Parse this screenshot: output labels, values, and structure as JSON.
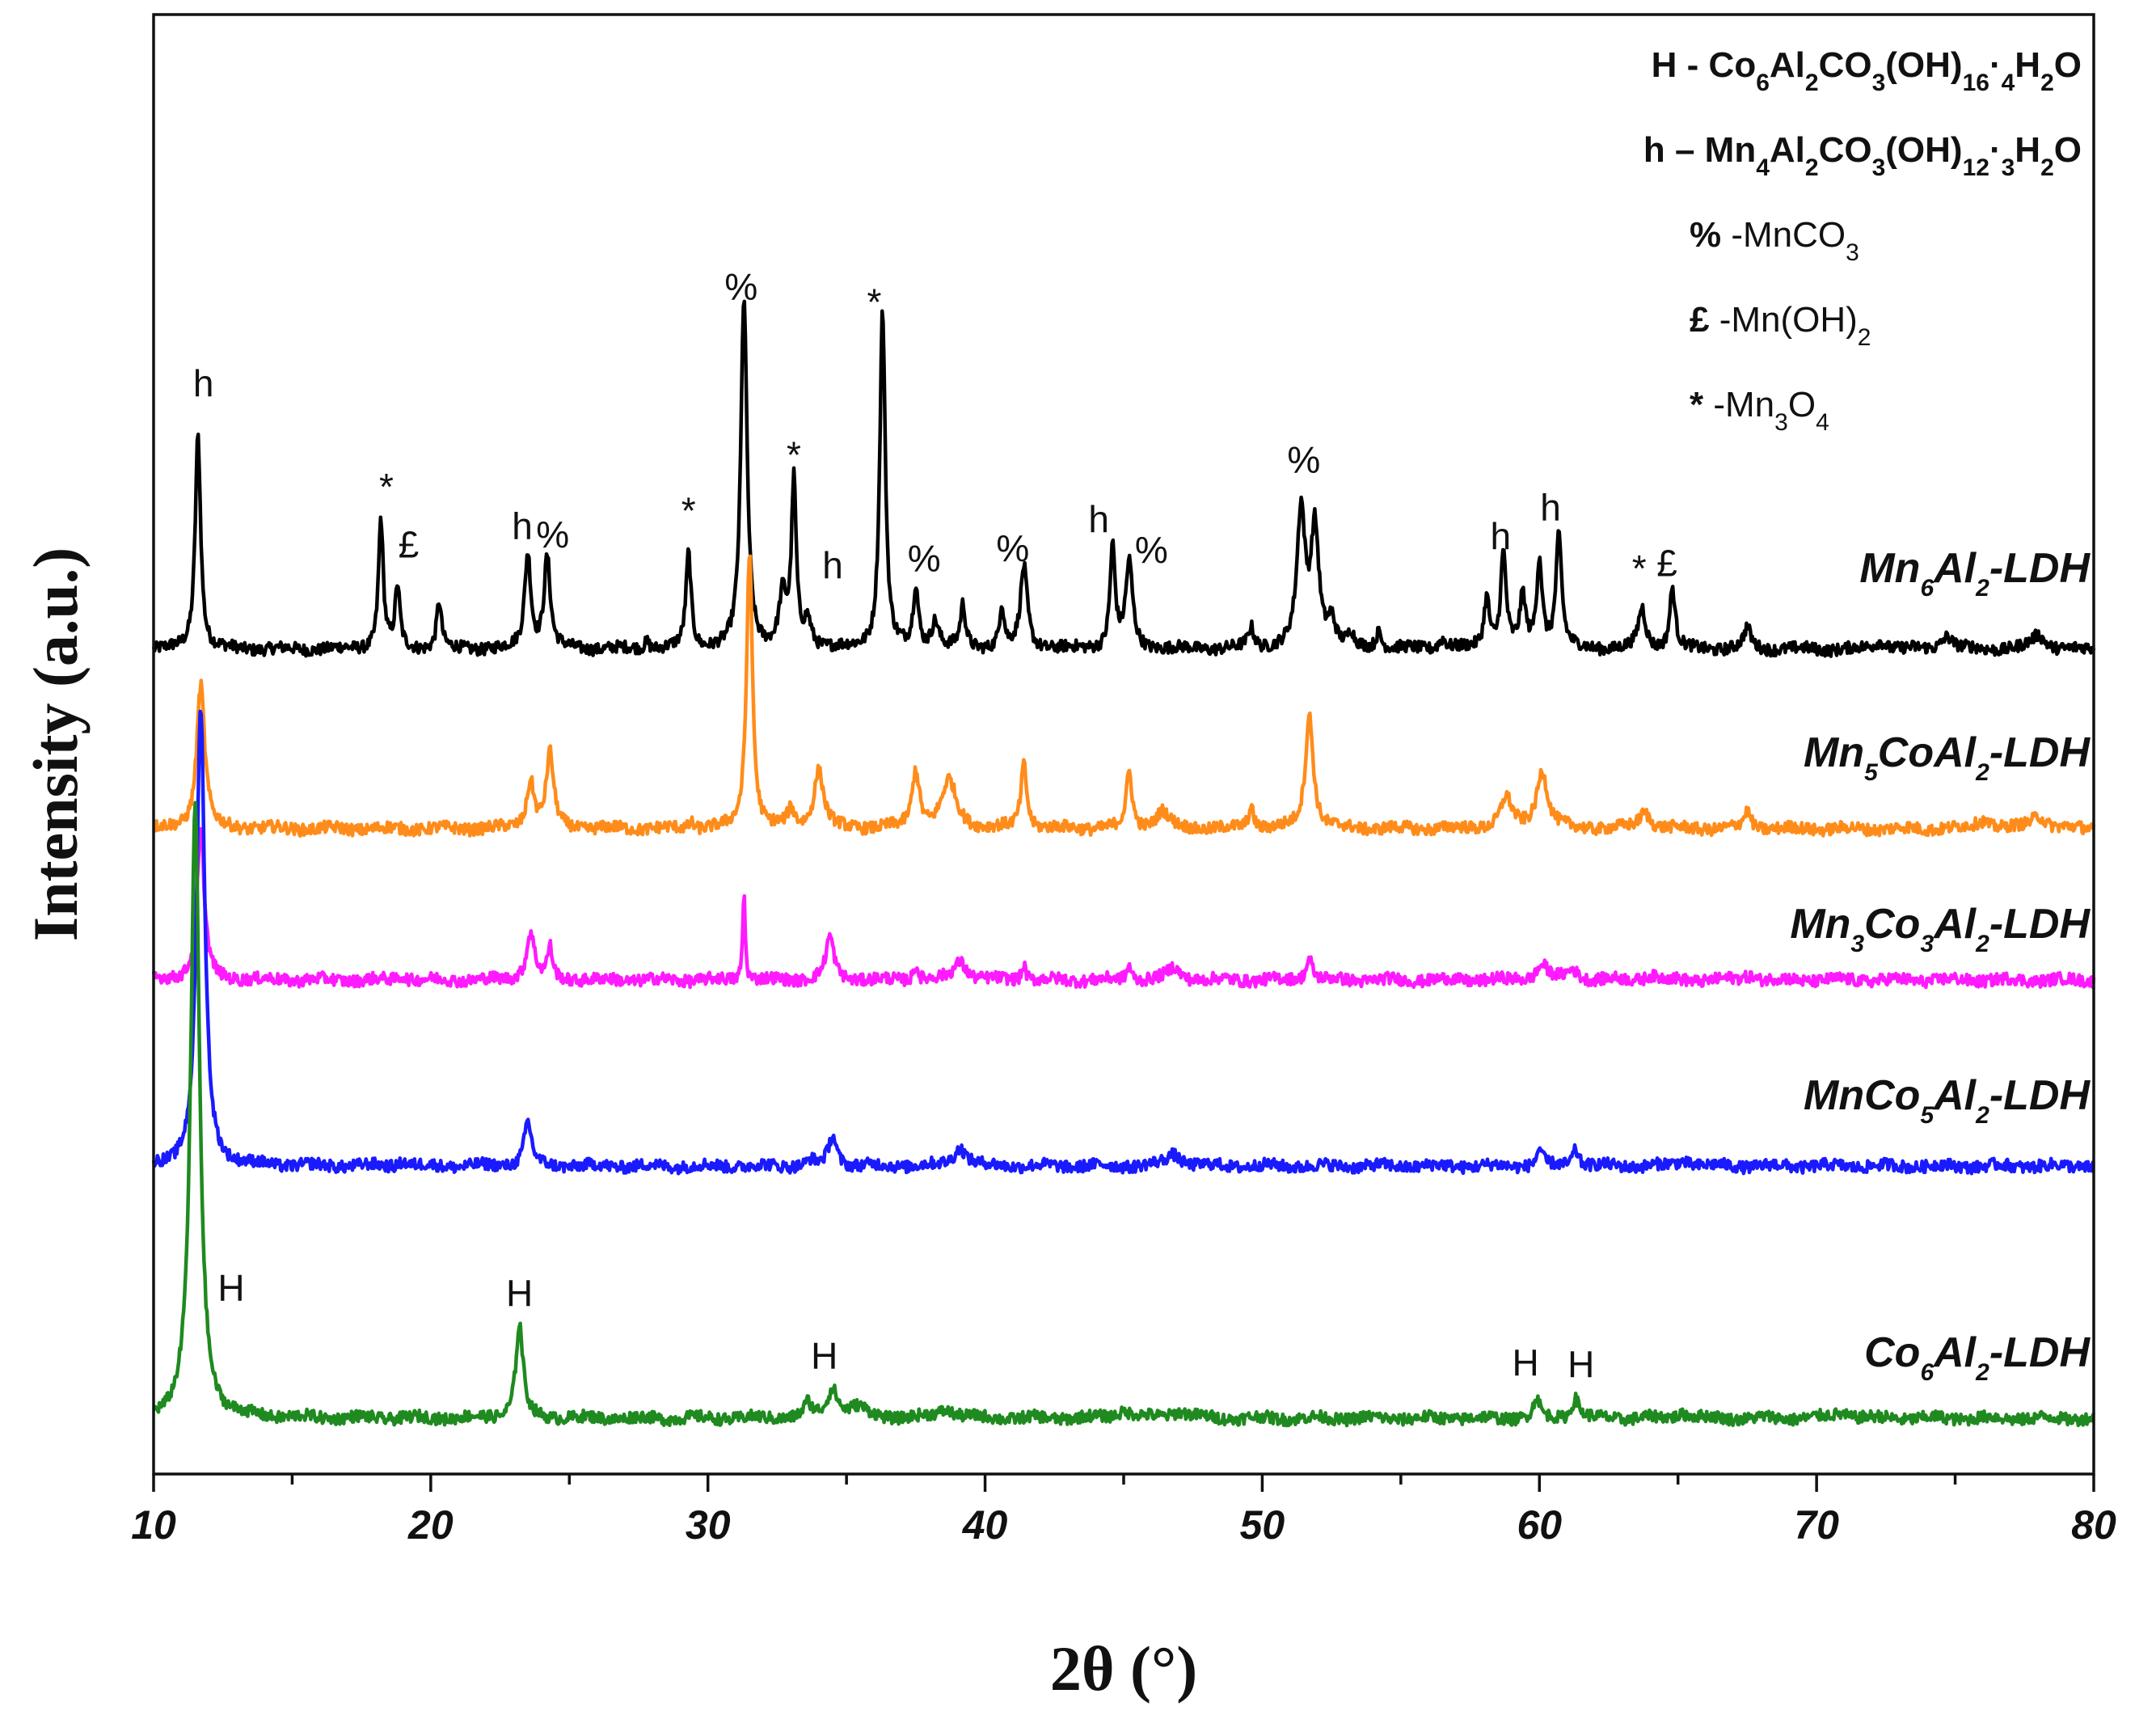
{
  "chart_data": {
    "type": "line",
    "xlabel": "2θ (°)",
    "ylabel": "Intensity (a.u.)",
    "xlim": [
      10,
      80
    ],
    "xticks": [
      "10",
      "20",
      "30",
      "40",
      "50",
      "60",
      "70",
      "80"
    ],
    "legend": {
      "position": "top-right",
      "entries": [
        {
          "symbol": "H",
          "text": "- Co6Al2CO3(OH)16·4H2O"
        },
        {
          "symbol": "h",
          "text": "– Mn4Al2CO3(OH)12·3H2O"
        },
        {
          "symbol": "%",
          "text": "-MnCO3"
        },
        {
          "symbol": "£",
          "text": "-Mn(OH)2"
        },
        {
          "symbol": "*",
          "text": "-Mn3O4"
        }
      ]
    },
    "series": [
      {
        "name": "Mn6Al2-LDH",
        "color": "#000000",
        "baseline": 0.0,
        "peaks": [
          [
            11.6,
            1.27,
            0.15
          ],
          [
            18.2,
            0.77,
            0.13
          ],
          [
            18.8,
            0.36,
            0.13
          ],
          [
            20.3,
            0.28,
            0.13
          ],
          [
            23.5,
            0.56,
            0.17
          ],
          [
            24.2,
            0.54,
            0.17
          ],
          [
            27.8,
            0.05,
            0.12
          ],
          [
            29.3,
            0.56,
            0.14
          ],
          [
            31.3,
            2.07,
            0.17
          ],
          [
            32.7,
            0.3,
            0.2
          ],
          [
            33.1,
            0.96,
            0.13
          ],
          [
            33.6,
            0.16,
            0.2
          ],
          [
            36.3,
            2.0,
            0.15
          ],
          [
            37.5,
            0.36,
            0.14
          ],
          [
            38.2,
            0.16,
            0.2
          ],
          [
            39.2,
            0.25,
            0.14
          ],
          [
            40.6,
            0.25,
            0.13
          ],
          [
            41.4,
            0.48,
            0.19
          ],
          [
            44.6,
            0.6,
            0.14
          ],
          [
            45.2,
            0.5,
            0.19
          ],
          [
            49.6,
            0.12,
            0.16
          ],
          [
            51.4,
            0.8,
            0.22
          ],
          [
            51.9,
            0.7,
            0.22
          ],
          [
            52.5,
            0.16,
            0.2
          ],
          [
            53.2,
            0.08,
            0.15
          ],
          [
            54.2,
            0.1,
            0.15
          ],
          [
            56.5,
            0.06,
            0.2
          ],
          [
            58.1,
            0.3,
            0.15
          ],
          [
            58.7,
            0.56,
            0.15
          ],
          [
            59.4,
            0.3,
            0.15
          ],
          [
            60.0,
            0.52,
            0.15
          ],
          [
            60.7,
            0.66,
            0.16
          ],
          [
            63.7,
            0.24,
            0.2
          ],
          [
            64.8,
            0.36,
            0.15
          ],
          [
            67.5,
            0.12,
            0.2
          ],
          [
            72.3,
            0.05,
            0.3
          ],
          [
            74.7,
            0.08,
            0.3
          ],
          [
            78.0,
            0.08,
            0.4
          ]
        ]
      },
      {
        "name": "Mn5CoAl2-LDH",
        "color": "#ff8c1a",
        "baseline": 0.0,
        "peaks": [
          [
            11.7,
            0.85,
            0.22
          ],
          [
            23.6,
            0.28,
            0.2
          ],
          [
            24.3,
            0.44,
            0.2
          ],
          [
            29.4,
            0.04,
            0.12
          ],
          [
            31.5,
            1.64,
            0.16
          ],
          [
            33.0,
            0.1,
            0.2
          ],
          [
            34.0,
            0.34,
            0.26
          ],
          [
            37.5,
            0.34,
            0.2
          ],
          [
            38.7,
            0.28,
            0.4
          ],
          [
            41.4,
            0.38,
            0.16
          ],
          [
            45.2,
            0.33,
            0.16
          ],
          [
            46.4,
            0.1,
            0.35
          ],
          [
            49.6,
            0.12,
            0.16
          ],
          [
            51.7,
            0.67,
            0.22
          ],
          [
            58.8,
            0.18,
            0.3
          ],
          [
            60.1,
            0.34,
            0.3
          ],
          [
            63.8,
            0.1,
            0.3
          ],
          [
            67.5,
            0.1,
            0.2
          ],
          [
            76.0,
            0.05,
            0.4
          ],
          [
            78.0,
            0.08,
            0.4
          ]
        ]
      },
      {
        "name": "Mn3Co3Al2-LDH",
        "color": "#ff1aff",
        "baseline": 0.0,
        "peaks": [
          [
            11.7,
            0.88,
            0.2
          ],
          [
            19.0,
            0.03,
            0.2
          ],
          [
            23.6,
            0.28,
            0.22
          ],
          [
            24.3,
            0.18,
            0.14
          ],
          [
            31.3,
            0.52,
            0.07
          ],
          [
            34.4,
            0.25,
            0.22
          ],
          [
            37.5,
            0.09,
            0.12
          ],
          [
            39.1,
            0.11,
            0.35
          ],
          [
            41.4,
            0.09,
            0.12
          ],
          [
            45.2,
            0.09,
            0.12
          ],
          [
            46.8,
            0.07,
            0.35
          ],
          [
            51.7,
            0.13,
            0.18
          ],
          [
            60.1,
            0.09,
            0.3
          ],
          [
            61.2,
            0.06,
            0.3
          ],
          [
            64.0,
            0.03,
            0.3
          ],
          [
            67.6,
            0.03,
            0.3
          ]
        ]
      },
      {
        "name": "MnCo5Al2-LDH",
        "color": "#1a1aff",
        "baseline": 0.0,
        "peaks": [
          [
            11.7,
            2.7,
            0.22
          ],
          [
            19.0,
            0.03,
            0.2
          ],
          [
            23.5,
            0.26,
            0.2
          ],
          [
            33.7,
            0.03,
            0.2
          ],
          [
            34.5,
            0.18,
            0.22
          ],
          [
            39.1,
            0.11,
            0.35
          ],
          [
            46.8,
            0.07,
            0.4
          ],
          [
            60.0,
            0.1,
            0.15
          ],
          [
            61.3,
            0.1,
            0.18
          ],
          [
            65.2,
            0.03,
            0.4
          ]
        ]
      },
      {
        "name": "Co6Al2-LDH",
        "color": "#1f8a1f",
        "baseline": 0.0,
        "peaks": [
          [
            11.5,
            3.6,
            0.24
          ],
          [
            23.2,
            0.55,
            0.2
          ],
          [
            33.6,
            0.08,
            0.2
          ],
          [
            34.5,
            0.17,
            0.3
          ],
          [
            35.4,
            0.06,
            0.5
          ],
          [
            38.6,
            0.05,
            0.5
          ],
          [
            45.0,
            0.04,
            0.5
          ],
          [
            47.0,
            0.04,
            0.5
          ],
          [
            59.9,
            0.12,
            0.16
          ],
          [
            61.3,
            0.12,
            0.2
          ],
          [
            65.2,
            0.03,
            0.4
          ],
          [
            70.9,
            0.03,
            0.5
          ]
        ]
      }
    ],
    "annotations": [
      {
        "series": "Mn6Al2-LDH",
        "x": 11.8,
        "text": "h",
        "h": 1.49
      },
      {
        "series": "Mn6Al2-LDH",
        "x": 18.4,
        "text": "*",
        "h": 0.88
      },
      {
        "series": "Mn6Al2-LDH",
        "x": 19.2,
        "text": "£",
        "h": 0.54
      },
      {
        "series": "Mn6Al2-LDH",
        "x": 23.3,
        "text": "h",
        "h": 0.65
      },
      {
        "series": "Mn6Al2-LDH",
        "x": 24.4,
        "text": "%",
        "h": 0.6
      },
      {
        "series": "Mn6Al2-LDH",
        "x": 29.3,
        "text": "*",
        "h": 0.74
      },
      {
        "series": "Mn6Al2-LDH",
        "x": 31.2,
        "text": "%",
        "h": 2.06
      },
      {
        "series": "Mn6Al2-LDH",
        "x": 33.1,
        "text": "*",
        "h": 1.07
      },
      {
        "series": "Mn6Al2-LDH",
        "x": 34.5,
        "text": "h",
        "h": 0.42
      },
      {
        "series": "Mn6Al2-LDH",
        "x": 36.0,
        "text": "*",
        "h": 1.97
      },
      {
        "series": "Mn6Al2-LDH",
        "x": 37.8,
        "text": "%",
        "h": 0.46
      },
      {
        "series": "Mn6Al2-LDH",
        "x": 41.0,
        "text": "%",
        "h": 0.52
      },
      {
        "series": "Mn6Al2-LDH",
        "x": 44.1,
        "text": "h",
        "h": 0.69
      },
      {
        "series": "Mn6Al2-LDH",
        "x": 46.0,
        "text": "%",
        "h": 0.51
      },
      {
        "series": "Mn6Al2-LDH",
        "x": 51.5,
        "text": "%",
        "h": 1.04
      },
      {
        "series": "Mn6Al2-LDH",
        "x": 58.6,
        "text": "h",
        "h": 0.59
      },
      {
        "series": "Mn6Al2-LDH",
        "x": 60.4,
        "text": "h",
        "h": 0.76
      },
      {
        "series": "Mn6Al2-LDH",
        "x": 63.6,
        "text": "*",
        "h": 0.4
      },
      {
        "series": "Mn6Al2-LDH",
        "x": 64.6,
        "text": "£",
        "h": 0.43
      },
      {
        "series": "Co6Al2-LDH",
        "x": 12.8,
        "text": "H",
        "h": 0.69
      },
      {
        "series": "Co6Al2-LDH",
        "x": 23.2,
        "text": "H",
        "h": 0.66
      },
      {
        "series": "Co6Al2-LDH",
        "x": 34.2,
        "text": "H",
        "h": 0.29
      },
      {
        "series": "Co6Al2-LDH",
        "x": 59.5,
        "text": "H",
        "h": 0.25
      },
      {
        "series": "Co6Al2-LDH",
        "x": 61.5,
        "text": "H",
        "h": 0.24
      }
    ]
  }
}
